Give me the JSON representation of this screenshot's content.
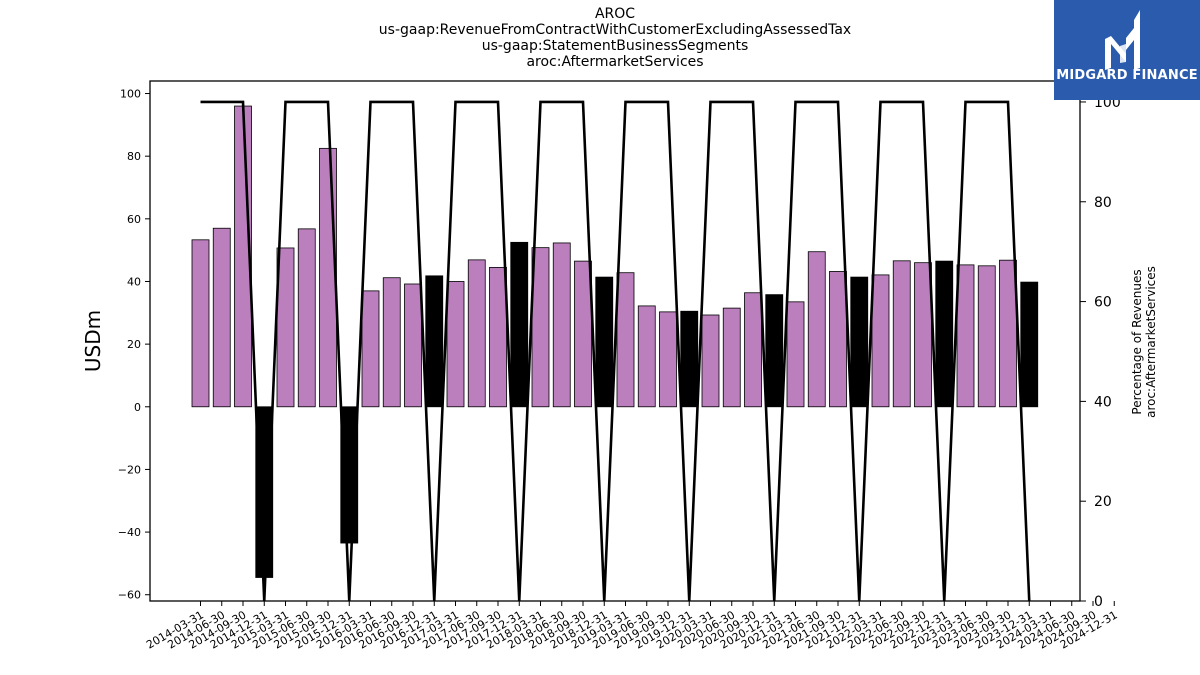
{
  "chart_data": {
    "type": "bar",
    "title_lines": [
      "AROC",
      "us-gaap:RevenueFromContractWithCustomerExcludingAssessedTax",
      "us-gaap:StatementBusinessSegments",
      "aroc:AftermarketServices"
    ],
    "ylabel": "USDm",
    "y2label_lines": [
      "Percentage of Revenues",
      "aroc:AftermarketServices"
    ],
    "ylim": [
      -62,
      104
    ],
    "y2lim": [
      0,
      104.2
    ],
    "yticks": [
      -60,
      -40,
      -20,
      0,
      20,
      40,
      60,
      80,
      100
    ],
    "y2ticks": [
      0,
      20,
      40,
      60,
      80,
      100
    ],
    "categories": [
      "2014-03-31",
      "2014-06-30",
      "2014-09-30",
      "2014-12-31",
      "2015-03-31",
      "2015-06-30",
      "2015-09-30",
      "2015-12-31",
      "2016-03-31",
      "2016-06-30",
      "2016-09-30",
      "2016-12-31",
      "2017-03-31",
      "2017-06-30",
      "2017-09-30",
      "2017-12-31",
      "2018-03-31",
      "2018-06-30",
      "2018-09-30",
      "2018-12-31",
      "2019-03-31",
      "2019-06-30",
      "2019-09-30",
      "2019-12-31",
      "2020-03-31",
      "2020-06-30",
      "2020-09-30",
      "2020-12-31",
      "2021-03-31",
      "2021-06-30",
      "2021-09-30",
      "2021-12-31",
      "2022-03-31",
      "2022-06-30",
      "2022-09-30",
      "2022-12-31",
      "2023-03-31",
      "2023-06-30",
      "2023-09-30",
      "2023-12-31"
    ],
    "xtick_labels": [
      "2014-03-31",
      "2014-06-30",
      "2014-09-30",
      "2014-12-31",
      "2015-03-31",
      "2015-06-30",
      "2015-09-30",
      "2015-12-31",
      "2016-03-31",
      "2016-06-30",
      "2016-09-30",
      "2016-12-31",
      "2017-03-31",
      "2017-06-30",
      "2017-09-30",
      "2017-12-31",
      "2018-03-31",
      "2018-06-30",
      "2018-09-30",
      "2018-12-31",
      "2019-03-31",
      "2019-06-30",
      "2019-09-30",
      "2019-12-31",
      "2020-03-31",
      "2020-06-30",
      "2020-09-30",
      "2020-12-31",
      "2021-03-31",
      "2021-06-30",
      "2021-09-30",
      "2021-12-31",
      "2022-03-31",
      "2022-06-30",
      "2022-09-30",
      "2022-12-31",
      "2023-03-31",
      "2023-06-30",
      "2023-09-30",
      "2023-12-31",
      "2024-03-31",
      "2024-06-30",
      "2024-09-30",
      "2024-12-31"
    ],
    "bars": {
      "values": [
        53.3,
        57.0,
        96.0,
        -54.5,
        50.7,
        56.8,
        82.5,
        -43.5,
        37.0,
        41.2,
        39.2,
        41.8,
        40.0,
        46.9,
        44.5,
        52.5,
        50.8,
        52.3,
        46.5,
        41.4,
        42.8,
        32.2,
        30.3,
        30.5,
        29.3,
        31.5,
        36.4,
        35.8,
        33.5,
        49.5,
        43.2,
        41.4,
        42.1,
        46.6,
        46.0,
        46.5,
        45.3,
        45.0,
        46.8,
        39.8
      ],
      "annual": [
        false,
        false,
        false,
        true,
        false,
        false,
        false,
        true,
        false,
        false,
        false,
        true,
        false,
        false,
        false,
        true,
        false,
        false,
        false,
        true,
        false,
        false,
        false,
        true,
        false,
        false,
        false,
        true,
        false,
        false,
        false,
        true,
        false,
        false,
        false,
        true,
        false,
        false,
        false,
        true
      ],
      "quarterly_color": "#bb7fbe",
      "annual_color": "#000000"
    },
    "percentage_line": {
      "values": [
        100,
        100,
        100,
        0,
        100,
        100,
        100,
        0,
        100,
        100,
        100,
        0,
        100,
        100,
        100,
        0,
        100,
        100,
        100,
        0,
        100,
        100,
        100,
        0,
        100,
        100,
        100,
        0,
        100,
        100,
        100,
        0,
        100,
        100,
        100,
        0,
        100,
        100,
        100,
        0
      ],
      "color": "#000000"
    },
    "grid": false
  },
  "logo": {
    "text": "MIDGARD FINANCE",
    "background": "#2b5bad"
  }
}
